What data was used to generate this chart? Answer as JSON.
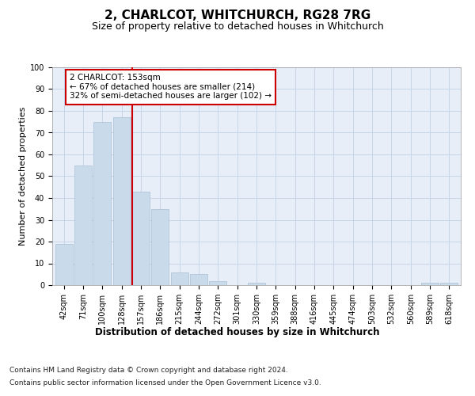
{
  "title": "2, CHARLCOT, WHITCHURCH, RG28 7RG",
  "subtitle": "Size of property relative to detached houses in Whitchurch",
  "xlabel": "Distribution of detached houses by size in Whitchurch",
  "ylabel": "Number of detached properties",
  "bar_labels": [
    "42sqm",
    "71sqm",
    "100sqm",
    "128sqm",
    "157sqm",
    "186sqm",
    "215sqm",
    "244sqm",
    "272sqm",
    "301sqm",
    "330sqm",
    "359sqm",
    "388sqm",
    "416sqm",
    "445sqm",
    "474sqm",
    "503sqm",
    "532sqm",
    "560sqm",
    "589sqm",
    "618sqm"
  ],
  "bar_values": [
    19,
    55,
    75,
    77,
    43,
    35,
    6,
    5,
    2,
    0,
    1,
    0,
    0,
    0,
    0,
    0,
    0,
    0,
    0,
    1,
    1
  ],
  "bar_color": "#c9daea",
  "bar_edgecolor": "#a8c0d6",
  "vline_index": 4,
  "vline_color": "#cc0000",
  "annotation_text": "2 CHARLCOT: 153sqm\n← 67% of detached houses are smaller (214)\n32% of semi-detached houses are larger (102) →",
  "annotation_box_edgecolor": "#cc0000",
  "annotation_box_facecolor": "#ffffff",
  "ylim": [
    0,
    100
  ],
  "yticks": [
    0,
    10,
    20,
    30,
    40,
    50,
    60,
    70,
    80,
    90,
    100
  ],
  "grid_color": "#c8d4e8",
  "background_color": "#e8eef8",
  "footer_line1": "Contains HM Land Registry data © Crown copyright and database right 2024.",
  "footer_line2": "Contains public sector information licensed under the Open Government Licence v3.0.",
  "title_fontsize": 11,
  "subtitle_fontsize": 9,
  "xlabel_fontsize": 8.5,
  "ylabel_fontsize": 8,
  "tick_fontsize": 7,
  "annotation_fontsize": 7.5,
  "footer_fontsize": 6.5
}
